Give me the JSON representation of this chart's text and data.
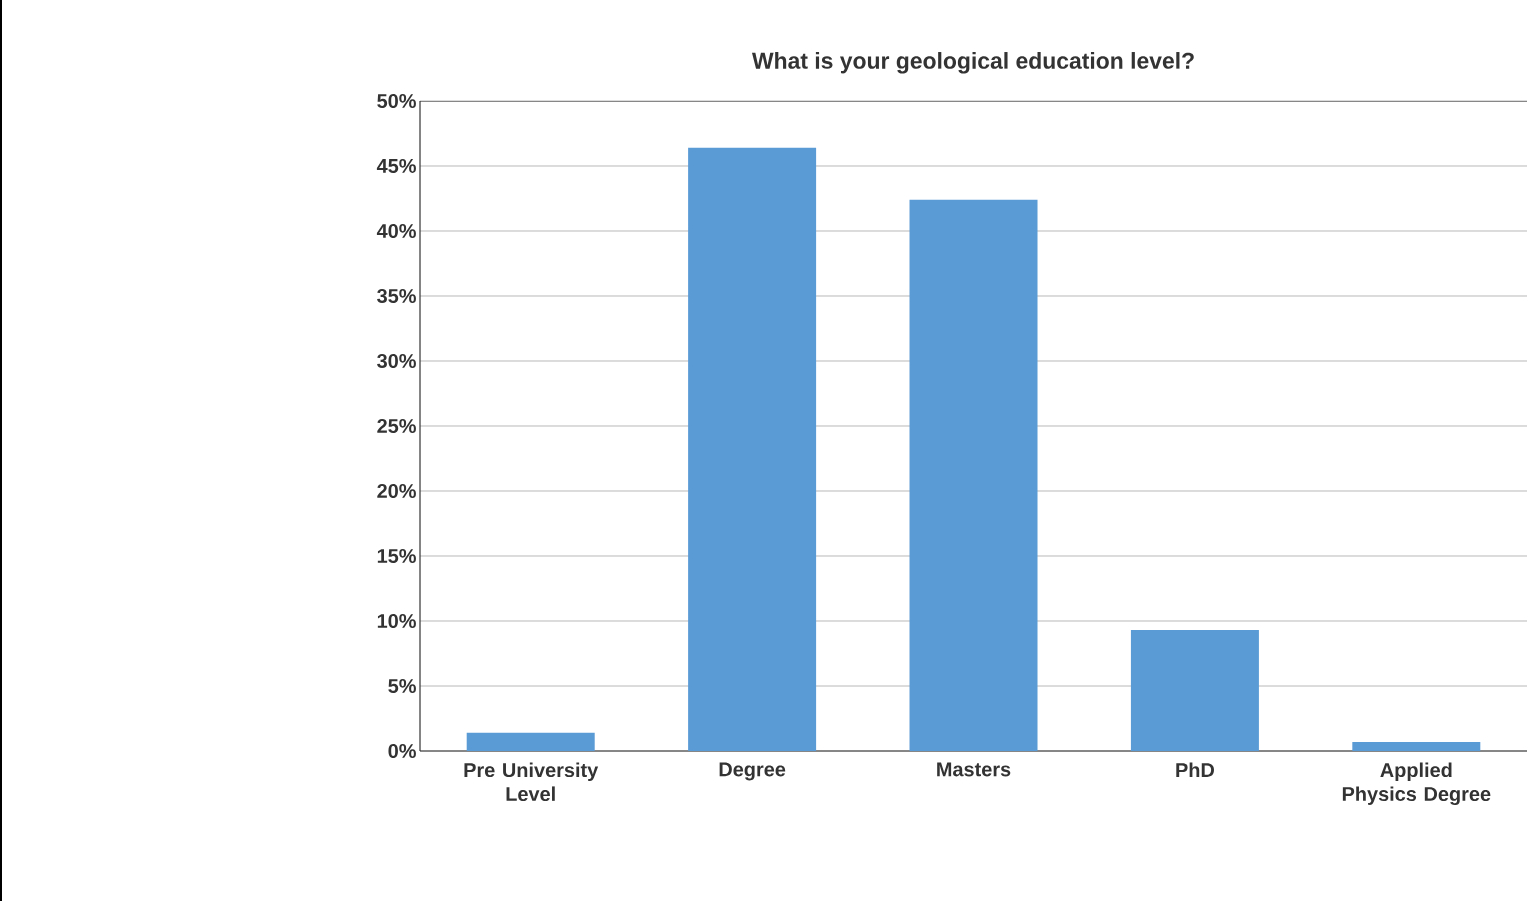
{
  "chart_data": {
    "type": "bar",
    "title": "What is your geological education level?",
    "categories": [
      "Pre University Level",
      "Degree",
      "Masters",
      "PhD",
      "Applied Physics Degree"
    ],
    "values": [
      1.4,
      46.4,
      42.4,
      9.3,
      0.7
    ],
    "color": "#5b9bd5",
    "ylim": [
      0,
      50
    ],
    "yticks": [
      {
        "value": 0,
        "label": "0%"
      },
      {
        "value": 5,
        "label": "5%"
      },
      {
        "value": 10,
        "label": "10%"
      },
      {
        "value": 15,
        "label": "15%"
      },
      {
        "value": 20,
        "label": "20%"
      },
      {
        "value": 25,
        "label": "25%"
      },
      {
        "value": 30,
        "label": "30%"
      },
      {
        "value": 35,
        "label": "35%"
      },
      {
        "value": 40,
        "label": "40%"
      },
      {
        "value": 45,
        "label": "45%"
      },
      {
        "value": 50,
        "label": "50%"
      }
    ],
    "grid": "y"
  }
}
